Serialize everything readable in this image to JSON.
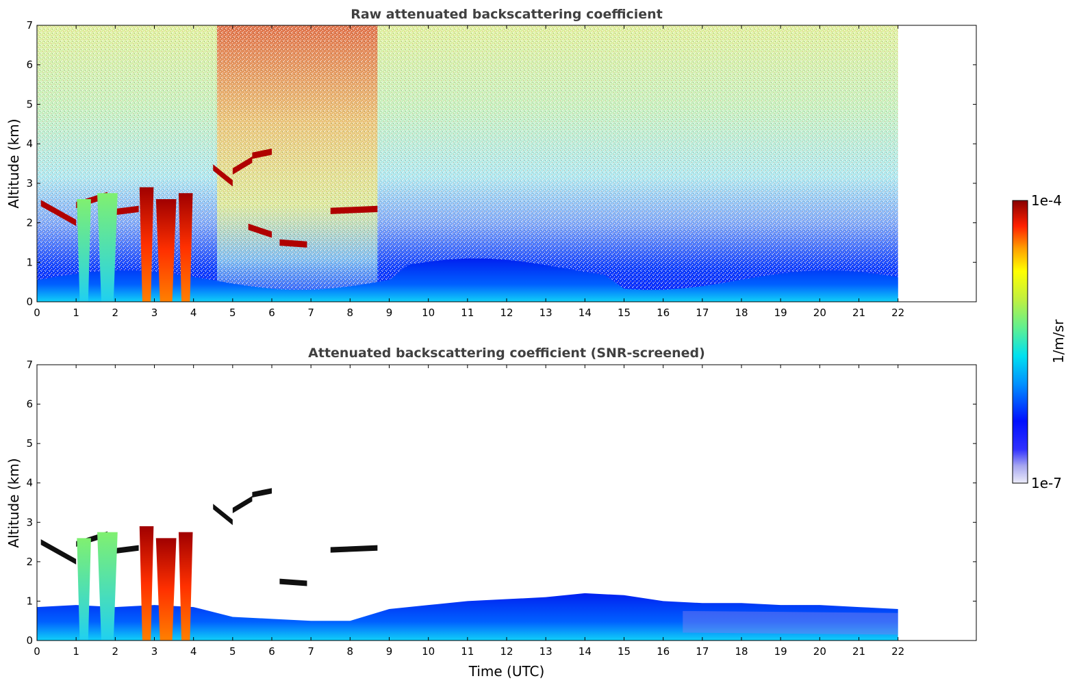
{
  "chart_data": [
    {
      "type": "heatmap",
      "title": "Raw attenuated backscattering coefficient",
      "xlabel": "",
      "ylabel": "Altitude (km)",
      "xlim": [
        0,
        24
      ],
      "ylim": [
        0,
        7
      ],
      "x_ticks": [
        0,
        1,
        2,
        3,
        4,
        5,
        6,
        7,
        8,
        9,
        10,
        11,
        12,
        13,
        14,
        15,
        16,
        17,
        18,
        19,
        20,
        21,
        22
      ],
      "y_ticks": [
        0,
        1,
        2,
        3,
        4,
        5,
        6,
        7
      ],
      "data_end_time": 22,
      "grid": false,
      "features": [
        {
          "kind": "noise_level_high",
          "x_range": [
            4.6,
            8.7
          ]
        },
        {
          "kind": "cloud_layer",
          "x_range": [
            0,
            8.7
          ],
          "altitude_approx": [
            2.0,
            3.8
          ]
        },
        {
          "kind": "rain_shafts",
          "x_approx": [
            1.2,
            1.8,
            2.8,
            3.3,
            3.8
          ]
        },
        {
          "kind": "boundary_layer",
          "x_range": [
            0,
            22
          ],
          "altitude_approx": [
            0,
            1.1
          ]
        }
      ]
    },
    {
      "type": "heatmap",
      "title": "Attenuated backscattering coefficient (SNR-screened)",
      "xlabel": "Time (UTC)",
      "ylabel": "Altitude (km)",
      "xlim": [
        0,
        24
      ],
      "ylim": [
        0,
        7
      ],
      "x_ticks": [
        0,
        1,
        2,
        3,
        4,
        5,
        6,
        7,
        8,
        9,
        10,
        11,
        12,
        13,
        14,
        15,
        16,
        17,
        18,
        19,
        20,
        21,
        22
      ],
      "y_ticks": [
        0,
        1,
        2,
        3,
        4,
        5,
        6,
        7
      ],
      "data_end_time": 22,
      "grid": false,
      "features": [
        {
          "kind": "boundary_layer_top",
          "x": [
            0,
            1,
            2,
            3,
            4,
            5,
            6,
            7,
            8,
            9,
            10,
            11,
            12,
            13,
            14,
            15,
            16,
            17,
            18,
            19,
            20,
            21,
            22
          ],
          "altitude": [
            0.85,
            0.9,
            0.85,
            0.9,
            0.85,
            0.6,
            0.55,
            0.5,
            0.5,
            0.8,
            0.9,
            1.0,
            1.05,
            1.1,
            1.2,
            1.15,
            1.0,
            0.95,
            0.95,
            0.9,
            0.9,
            0.85,
            0.8
          ]
        }
      ]
    }
  ],
  "colorbar": {
    "label": "1/m/sr",
    "max_label": "1e-4",
    "min_label": "1e-7",
    "colormap": [
      "#e6e6f8",
      "#a8a8f0",
      "#5a5af0",
      "#0000ff",
      "#0050ff",
      "#00a0ff",
      "#00e0f0",
      "#40f0b0",
      "#90f070",
      "#d0f040",
      "#ffff00",
      "#ffb000",
      "#ff6000",
      "#ff0000",
      "#b00000",
      "#800000"
    ]
  }
}
